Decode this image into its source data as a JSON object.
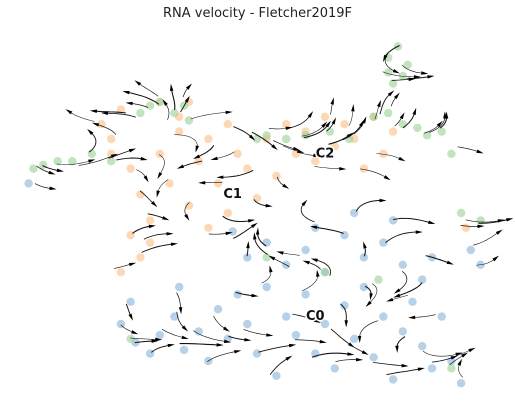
{
  "chart_data": {
    "type": "scatter",
    "title": "RNA velocity - Fletcher2019F",
    "xlabel": "",
    "ylabel": "",
    "axes_visible": false,
    "grid": false,
    "overlay": "velocity streamlines with arrowheads",
    "x_range": [
      0,
      1
    ],
    "y_range": [
      0,
      1
    ],
    "series": [
      {
        "name": "C0",
        "color": "#8fb8dc",
        "centroid": [
          0.6,
          0.24
        ],
        "points": [
          [
            0.22,
            0.2
          ],
          [
            0.25,
            0.15
          ],
          [
            0.28,
            0.12
          ],
          [
            0.3,
            0.17
          ],
          [
            0.33,
            0.22
          ],
          [
            0.35,
            0.13
          ],
          [
            0.38,
            0.18
          ],
          [
            0.4,
            0.1
          ],
          [
            0.42,
            0.24
          ],
          [
            0.44,
            0.16
          ],
          [
            0.46,
            0.28
          ],
          [
            0.48,
            0.2
          ],
          [
            0.5,
            0.12
          ],
          [
            0.52,
            0.3
          ],
          [
            0.54,
            0.06
          ],
          [
            0.56,
            0.22
          ],
          [
            0.58,
            0.17
          ],
          [
            0.6,
            0.28
          ],
          [
            0.62,
            0.12
          ],
          [
            0.64,
            0.2
          ],
          [
            0.66,
            0.08
          ],
          [
            0.68,
            0.25
          ],
          [
            0.7,
            0.16
          ],
          [
            0.72,
            0.3
          ],
          [
            0.74,
            0.11
          ],
          [
            0.76,
            0.22
          ],
          [
            0.78,
            0.05
          ],
          [
            0.8,
            0.18
          ],
          [
            0.82,
            0.26
          ],
          [
            0.84,
            0.14
          ],
          [
            0.86,
            0.08
          ],
          [
            0.88,
            0.22
          ],
          [
            0.9,
            0.1
          ],
          [
            0.92,
            0.04
          ],
          [
            0.48,
            0.38
          ],
          [
            0.52,
            0.42
          ],
          [
            0.56,
            0.36
          ],
          [
            0.6,
            0.4
          ],
          [
            0.64,
            0.34
          ],
          [
            0.68,
            0.44
          ],
          [
            0.72,
            0.38
          ],
          [
            0.76,
            0.42
          ],
          [
            0.8,
            0.36
          ],
          [
            0.84,
            0.32
          ],
          [
            0.45,
            0.45
          ],
          [
            0.62,
            0.46
          ],
          [
            0.7,
            0.5
          ],
          [
            0.78,
            0.48
          ],
          [
            0.86,
            0.38
          ],
          [
            0.94,
            0.4
          ],
          [
            0.96,
            0.36
          ],
          [
            0.03,
            0.58
          ],
          [
            0.24,
            0.26
          ],
          [
            0.34,
            0.3
          ]
        ]
      },
      {
        "name": "C1",
        "color": "#fdc28c",
        "centroid": [
          0.45,
          0.56
        ],
        "points": [
          [
            0.2,
            0.7
          ],
          [
            0.24,
            0.62
          ],
          [
            0.26,
            0.55
          ],
          [
            0.28,
            0.48
          ],
          [
            0.3,
            0.66
          ],
          [
            0.32,
            0.58
          ],
          [
            0.34,
            0.72
          ],
          [
            0.36,
            0.52
          ],
          [
            0.38,
            0.64
          ],
          [
            0.4,
            0.7
          ],
          [
            0.42,
            0.58
          ],
          [
            0.44,
            0.5
          ],
          [
            0.46,
            0.66
          ],
          [
            0.48,
            0.62
          ],
          [
            0.5,
            0.54
          ],
          [
            0.52,
            0.7
          ],
          [
            0.54,
            0.6
          ],
          [
            0.56,
            0.74
          ],
          [
            0.58,
            0.66
          ],
          [
            0.6,
            0.72
          ],
          [
            0.62,
            0.64
          ],
          [
            0.64,
            0.76
          ],
          [
            0.66,
            0.68
          ],
          [
            0.68,
            0.74
          ],
          [
            0.7,
            0.7
          ],
          [
            0.72,
            0.62
          ],
          [
            0.74,
            0.76
          ],
          [
            0.76,
            0.66
          ],
          [
            0.78,
            0.72
          ],
          [
            0.3,
            0.8
          ],
          [
            0.34,
            0.76
          ],
          [
            0.22,
            0.78
          ],
          [
            0.18,
            0.74
          ],
          [
            0.24,
            0.44
          ],
          [
            0.26,
            0.38
          ],
          [
            0.22,
            0.34
          ],
          [
            0.28,
            0.42
          ],
          [
            0.4,
            0.46
          ],
          [
            0.36,
            0.8
          ],
          [
            0.93,
            0.46
          ],
          [
            0.2,
            0.66
          ],
          [
            0.44,
            0.74
          ]
        ]
      },
      {
        "name": "C2",
        "color": "#9fd49a",
        "centroid": [
          0.64,
          0.64
        ],
        "points": [
          [
            0.77,
            0.92
          ],
          [
            0.79,
            0.95
          ],
          [
            0.81,
            0.9
          ],
          [
            0.8,
            0.87
          ],
          [
            0.77,
            0.88
          ],
          [
            0.78,
            0.85
          ],
          [
            0.04,
            0.62
          ],
          [
            0.06,
            0.63
          ],
          [
            0.09,
            0.64
          ],
          [
            0.12,
            0.64
          ],
          [
            0.16,
            0.66
          ],
          [
            0.2,
            0.64
          ],
          [
            0.26,
            0.77
          ],
          [
            0.28,
            0.79
          ],
          [
            0.3,
            0.8
          ],
          [
            0.33,
            0.77
          ],
          [
            0.35,
            0.79
          ],
          [
            0.36,
            0.75
          ],
          [
            0.5,
            0.7
          ],
          [
            0.52,
            0.71
          ],
          [
            0.56,
            0.7
          ],
          [
            0.6,
            0.71
          ],
          [
            0.65,
            0.72
          ],
          [
            0.69,
            0.7
          ],
          [
            0.74,
            0.76
          ],
          [
            0.77,
            0.77
          ],
          [
            0.8,
            0.74
          ],
          [
            0.83,
            0.73
          ],
          [
            0.85,
            0.71
          ],
          [
            0.88,
            0.72
          ],
          [
            0.9,
            0.66
          ],
          [
            0.92,
            0.5
          ],
          [
            0.96,
            0.48
          ],
          [
            0.52,
            0.38
          ],
          [
            0.64,
            0.34
          ],
          [
            0.75,
            0.32
          ],
          [
            0.24,
            0.16
          ],
          [
            0.9,
            0.08
          ]
        ]
      }
    ],
    "cluster_labels": [
      {
        "text": "C2",
        "x": 0.64,
        "y": 0.66
      },
      {
        "text": "C1",
        "x": 0.45,
        "y": 0.55
      },
      {
        "text": "C0",
        "x": 0.62,
        "y": 0.22
      }
    ]
  }
}
